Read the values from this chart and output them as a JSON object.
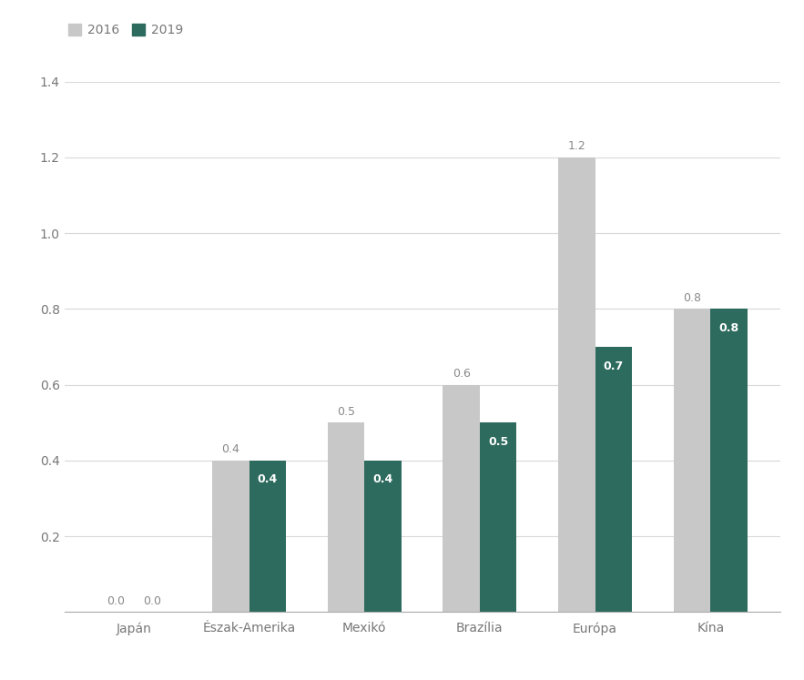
{
  "categories": [
    "Japán",
    "Észak-Amerika",
    "Mexikó",
    "Brazília",
    "Európa",
    "Kína"
  ],
  "values_2016": [
    0.0,
    0.4,
    0.5,
    0.6,
    1.2,
    0.8
  ],
  "values_2019": [
    0.0,
    0.4,
    0.4,
    0.5,
    0.7,
    0.8
  ],
  "color_2016": "#c8c8c8",
  "color_2019": "#2d6b5e",
  "ylim": [
    0,
    1.4
  ],
  "yticks": [
    0.0,
    0.2,
    0.4,
    0.6,
    0.8,
    1.0,
    1.2,
    1.4
  ],
  "ytick_labels": [
    "",
    "0.2",
    "0.4",
    "0.6",
    "0.8",
    "1.0",
    "1.2",
    "1.4"
  ],
  "legend_2016": "2016",
  "legend_2019": "2019",
  "background_color": "#ffffff",
  "grid_color": "#d9d9d9",
  "bar_width": 0.32,
  "tick_fontsize": 10,
  "legend_fontsize": 10,
  "value_fontsize": 9,
  "label_color_2016": "#888888",
  "label_color_2019_white": "#ffffff",
  "label_color_dark": "#888888"
}
